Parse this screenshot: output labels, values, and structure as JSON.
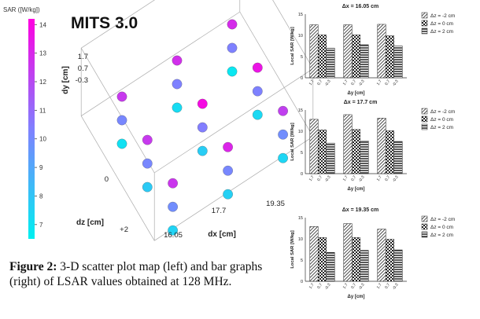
{
  "figure": {
    "caption_label": "Figure 2:",
    "caption_text": "3-D scatter plot map (left) and bar graphs (right) of LSAR values obtained at 128 MHz."
  },
  "colorbar": {
    "title": "SAR ([W/kg])",
    "ticks": [
      "14",
      "13",
      "12",
      "11",
      "10",
      "9",
      "8",
      "7"
    ],
    "min": 6.5,
    "max": 14.2,
    "color_low": "#00f0f0",
    "color_high": "#ff00e0"
  },
  "chart_data": [
    {
      "type": "scatter",
      "title": "MITS 3.0",
      "xlabel": "dx [cm]",
      "ylabel": "dy [cm]",
      "zlabel": "dz [cm]",
      "x_ticks": [
        "16.05",
        "17.7",
        "19.35"
      ],
      "y_ticks": [
        "1.7",
        "0.7",
        "-0.3"
      ],
      "z_ticks": [
        "0",
        "+2"
      ],
      "x_values": [
        16.05,
        17.7,
        19.35
      ],
      "y_values": [
        1.7,
        0.7,
        -0.3
      ],
      "z_values": [
        -2,
        0,
        2
      ],
      "points_note": "dx,dy,dz,SAR",
      "points": [
        [
          16.05,
          1.7,
          -2,
          12.5
        ],
        [
          16.05,
          0.7,
          -2,
          10.1
        ],
        [
          16.05,
          -0.3,
          -2,
          7.0
        ],
        [
          16.05,
          1.7,
          0,
          12.5
        ],
        [
          16.05,
          0.7,
          0,
          10.1
        ],
        [
          16.05,
          -0.3,
          0,
          7.8
        ],
        [
          16.05,
          1.7,
          2,
          12.6
        ],
        [
          16.05,
          0.7,
          2,
          9.9
        ],
        [
          16.05,
          -0.3,
          2,
          7.5
        ],
        [
          17.7,
          1.7,
          -2,
          12.8
        ],
        [
          17.7,
          0.7,
          -2,
          10.3
        ],
        [
          17.7,
          -0.3,
          -2,
          7.2
        ],
        [
          17.7,
          1.7,
          0,
          13.9
        ],
        [
          17.7,
          0.7,
          0,
          10.4
        ],
        [
          17.7,
          -0.3,
          0,
          7.7
        ],
        [
          17.7,
          1.7,
          2,
          13.1
        ],
        [
          17.7,
          0.7,
          2,
          10.1
        ],
        [
          17.7,
          -0.3,
          2,
          7.6
        ],
        [
          19.35,
          1.7,
          -2,
          12.9
        ],
        [
          19.35,
          0.7,
          -2,
          10.3
        ],
        [
          19.35,
          -0.3,
          -2,
          6.8
        ],
        [
          19.35,
          1.7,
          0,
          13.6
        ],
        [
          19.35,
          0.7,
          0,
          10.3
        ],
        [
          19.35,
          -0.3,
          0,
          7.3
        ],
        [
          19.35,
          1.7,
          2,
          12.3
        ],
        [
          19.35,
          0.7,
          2,
          9.9
        ],
        [
          19.35,
          -0.3,
          2,
          7.4
        ]
      ]
    },
    {
      "type": "bar",
      "title": "Δx = 16.05 cm",
      "ylabel": "Local SAR [W/kg]",
      "xlabel": "Δy [cm]",
      "ylim": [
        0,
        15
      ],
      "y_ticks": [
        "15",
        "10",
        "5",
        "0"
      ],
      "categories": [
        "1.7",
        "0.7",
        "-0.3"
      ],
      "series": [
        {
          "name": "Δz = -2 cm",
          "values": [
            12.5,
            10.1,
            7.0
          ]
        },
        {
          "name": "Δz = 0 cm",
          "values": [
            12.5,
            10.1,
            7.8
          ]
        },
        {
          "name": "Δz = 2 cm",
          "values": [
            12.6,
            9.9,
            7.5
          ]
        }
      ]
    },
    {
      "type": "bar",
      "title": "Δx = 17.7 cm",
      "ylabel": "Local SAR [W/kg]",
      "xlabel": "Δy [cm]",
      "ylim": [
        0,
        15
      ],
      "y_ticks": [
        "15",
        "10",
        "5",
        "0"
      ],
      "categories": [
        "1.7",
        "0.7",
        "-0.3"
      ],
      "series": [
        {
          "name": "Δz = -2 cm",
          "values": [
            12.8,
            10.3,
            7.2
          ]
        },
        {
          "name": "Δz = 0 cm",
          "values": [
            13.9,
            10.4,
            7.7
          ]
        },
        {
          "name": "Δz = 2 cm",
          "values": [
            13.1,
            10.1,
            7.6
          ]
        }
      ]
    },
    {
      "type": "bar",
      "title": "Δx = 19.35 cm",
      "ylabel": "Local SAR [W/kg]",
      "xlabel": "Δy [cm]",
      "ylim": [
        0,
        15
      ],
      "y_ticks": [
        "15",
        "10",
        "5",
        "0"
      ],
      "categories": [
        "1.7",
        "0.7",
        "-0.3"
      ],
      "series": [
        {
          "name": "Δz = -2 cm",
          "values": [
            12.9,
            10.3,
            6.8
          ]
        },
        {
          "name": "Δz = 0 cm",
          "values": [
            13.6,
            10.3,
            7.3
          ]
        },
        {
          "name": "Δz = 2 cm",
          "values": [
            12.3,
            9.9,
            7.4
          ]
        }
      ]
    }
  ]
}
